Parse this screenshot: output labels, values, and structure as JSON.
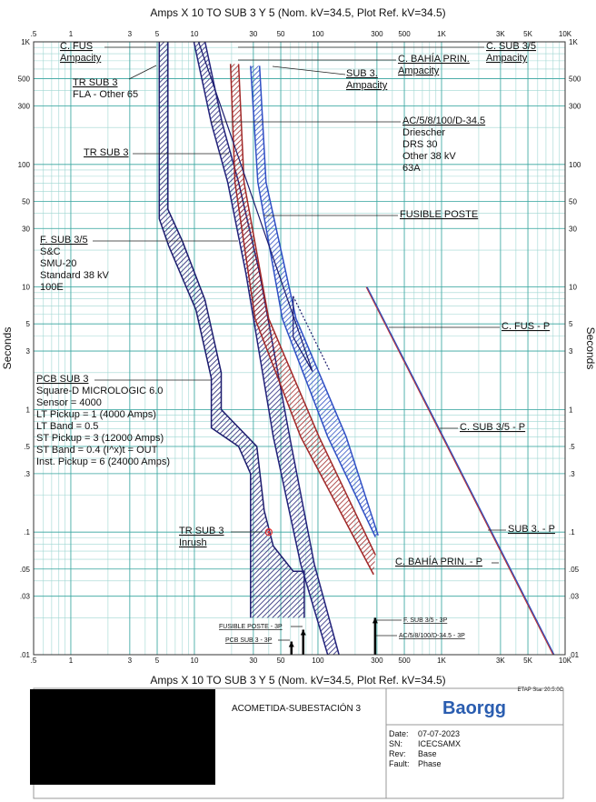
{
  "chart_data": {
    "type": "line",
    "title": "Amps  X  10    TO SUB 3 Y 5 (Nom. kV=34.5, Plot Ref. kV=34.5)",
    "y_label": "Seconds",
    "xlog": true,
    "ylog": true,
    "grid": true,
    "xlim": [
      0.5,
      10000
    ],
    "ylim": [
      0.01,
      1000
    ],
    "xticks": [
      {
        "value": 0.5,
        "label": ".5"
      },
      1,
      3,
      5,
      10,
      30,
      50,
      100,
      300,
      500,
      {
        "value": 1000,
        "label": "1K"
      },
      {
        "value": 3000,
        "label": "3K"
      },
      {
        "value": 5000,
        "label": "5K"
      },
      {
        "value": 10000,
        "label": "10K"
      }
    ],
    "yticks": [
      {
        "value": 0.01,
        "label": ".01"
      },
      {
        "value": 0.03,
        "label": ".03"
      },
      {
        "value": 0.05,
        "label": ".05"
      },
      {
        "value": 0.1,
        "label": ".1"
      },
      {
        "value": 0.3,
        "label": ".3"
      },
      {
        "value": 0.5,
        "label": ".5"
      },
      1,
      3,
      5,
      10,
      30,
      50,
      100,
      300,
      500,
      {
        "value": 1000,
        "label": "1K"
      }
    ],
    "bands": [
      {
        "color": "#1c1c6e",
        "lower": {
          "x": [
            5.2,
            5.2,
            6.2,
            10.3,
            13.7,
            13.7,
            22.8,
            28.5,
            28.5
          ],
          "y": [
            1000,
            36,
            21.6,
            6.5,
            1.8,
            0.71,
            0.5,
            0.3,
            0.02
          ]
        },
        "upper": {
          "x": [
            6.1,
            6.1,
            8,
            12.2,
            16.5,
            16.5,
            32,
            36.7,
            43.5,
            63,
            77.5,
            77.5
          ],
          "y": [
            1000,
            43,
            23.6,
            7.8,
            2,
            1,
            0.5,
            0.15,
            0.077,
            0.048,
            0.048,
            0.02
          ]
        }
      },
      {
        "color": "#22227a",
        "lower": {
          "x": [
            9.9,
            13.7,
            18.6,
            26.1,
            43.5,
            72.4,
            120
          ],
          "y": [
            1000,
            217,
            71.6,
            13,
            0.6,
            0.055,
            0.01
          ]
        },
        "upper": {
          "x": [
            12.2,
            16.8,
            22.8,
            33.7,
            59,
            93.4,
            148
          ],
          "y": [
            1000,
            217,
            71.6,
            13,
            0.6,
            0.055,
            0.01
          ]
        }
      },
      {
        "color": "#a02828",
        "lower": {
          "x": [
            19.6,
            21.3,
            31,
            72.4,
            282
          ],
          "y": [
            659,
            71.6,
            5.5,
            0.6,
            0.045
          ]
        },
        "upper": {
          "x": [
            22.8,
            25.2,
            40,
            102,
            292
          ],
          "y": [
            659,
            71.6,
            5.5,
            0.6,
            0.065
          ]
        }
      },
      {
        "color": "#2f4fc4",
        "lower": {
          "x": [
            28.5,
            32.6,
            51.5,
            120,
            292
          ],
          "y": [
            637,
            71.6,
            5.5,
            0.6,
            0.091
          ]
        },
        "upper": {
          "x": [
            33.7,
            38,
            66.5,
            169,
            307
          ],
          "y": [
            637,
            71.6,
            5.5,
            0.6,
            0.094
          ]
        }
      }
    ],
    "lines": [
      {
        "color": "#1c1c6e",
        "dashed": false,
        "x": [
          10.8,
          90.3
        ],
        "y": [
          1000,
          2.05
        ]
      },
      {
        "color": "#1c1c6e",
        "dashed": false,
        "x": [
          63,
          63,
          90.3
        ],
        "y": [
          8.4,
          3.9,
          2.05
        ]
      },
      {
        "color": "#1c1c6e",
        "dashed": true,
        "x": [
          63,
          125
        ],
        "y": [
          8.4,
          2.05
        ]
      },
      {
        "color": "#c03030",
        "dashed": false,
        "x": [
          246,
          8000
        ],
        "y": [
          10,
          0.01
        ]
      },
      {
        "color": "#3050c0",
        "dashed": false,
        "x": [
          250,
          8150
        ],
        "y": [
          10,
          0.01
        ]
      }
    ],
    "fault_markers": [
      {
        "x": 290,
        "y": 0.02
      },
      {
        "x": 76,
        "y": 0.016
      },
      {
        "x": 61,
        "y": 0.0128
      }
    ],
    "inrush_point": {
      "x": 40,
      "y": 0.1,
      "color": "#e03030"
    },
    "annotations": [
      {
        "lines": [
          "C. FUS",
          "Ampacity"
        ]
      },
      {
        "lines": [
          "TR SUB 3",
          "FLA - Other 65"
        ]
      },
      {
        "lines": [
          "C. SUB 3/5",
          "Ampacity"
        ]
      },
      {
        "lines": [
          "C. BAHÍA PRIN.",
          "Ampacity"
        ]
      },
      {
        "lines": [
          "SUB 3.",
          "Ampacity"
        ]
      },
      {
        "lines": [
          "AC/5/8/100/D-34.5",
          "Driescher",
          "DRS 30",
          "Other  38 kV",
          "63A"
        ]
      },
      {
        "lines": [
          "TR SUB 3"
        ]
      },
      {
        "lines": [
          "FUSIBLE POSTE"
        ]
      },
      {
        "lines": [
          "F. SUB 3/5",
          "S&C",
          "SMU-20",
          "Standard  38 kV",
          "100E"
        ]
      },
      {
        "lines": [
          "C. FUS - P"
        ]
      },
      {
        "lines": [
          "PCB SUB 3",
          "Square-D  MICROLOGIC 6.0",
          "Sensor = 4000",
          "LT Pickup = 1 (4000 Amps)",
          "LT Band = 0.5",
          "ST Pickup = 3 (12000 Amps)",
          "ST Band = 0.4  (I^x)t = OUT",
          "Inst. Pickup = 6 (24000 Amps)"
        ]
      },
      {
        "lines": [
          "C. SUB 3/5 - P"
        ]
      },
      {
        "lines": [
          "TR SUB 3",
          "Inrush"
        ]
      },
      {
        "lines": [
          "SUB 3. - P"
        ]
      },
      {
        "lines": [
          "C. BAHÍA PRIN. - P"
        ]
      },
      {
        "lines": [
          "F. SUB 3/5 - 3P"
        ]
      },
      {
        "lines": [
          "FUSIBLE POSTE - 3P"
        ]
      },
      {
        "lines": [
          "AC/5/8/100/D-34.5 - 3P"
        ]
      },
      {
        "lines": [
          "PCB SUB 3 - 3P"
        ]
      }
    ]
  },
  "footer": {
    "software": "ETAP Star 20.5.0C",
    "project": "ACOMETIDA-SUBESTACIÓN 3",
    "logo": "Baorgg",
    "fields": [
      [
        "Date:",
        "07-07-2023"
      ],
      [
        "SN:",
        "ICECSAMX"
      ],
      [
        "Rev:",
        "Base"
      ],
      [
        "Fault:",
        "Phase"
      ]
    ]
  }
}
